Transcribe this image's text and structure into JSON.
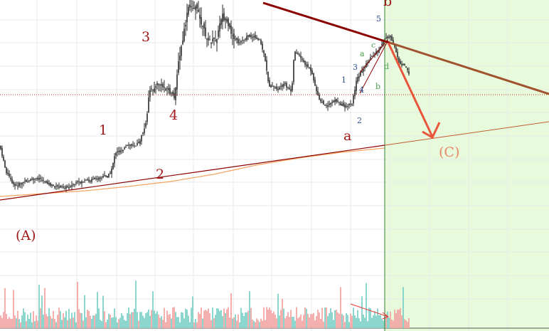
{
  "chart_data": {
    "type": "candlestick",
    "title": "",
    "xlabel": "",
    "ylabel": "",
    "grid": true,
    "colors": {
      "up": "#26a69a",
      "down": "#ef5350",
      "candle": "#2b2b2b",
      "trendline_dark": "#8b0000",
      "trendline_brown": "#a0522d",
      "moving_average": "#f4a460",
      "projection_arrow": "#e8553a",
      "projection_label": "#e8866a",
      "forecast_zone": "#e5f9d9",
      "wave_major": "#a01a1a",
      "wave_minor_blue": "#2a4f8f",
      "wave_minor_green": "#4aa04a",
      "price_line": "#c0392b"
    },
    "wave_labels_major": [
      "(A)",
      "1",
      "2",
      "3",
      "4",
      "a",
      "b",
      "(C)"
    ],
    "wave_labels_blue": [
      "1",
      "2",
      "3",
      "4",
      "5"
    ],
    "wave_labels_green": [
      "a",
      "b",
      "c",
      "d"
    ],
    "annotations": [
      "Projected decline toward (C)",
      "Shaded forecast zone"
    ]
  },
  "labels": {
    "A": "(A)",
    "w1": "1",
    "w2": "2",
    "w3": "3",
    "w4": "4",
    "a": "a",
    "b": "b",
    "C": "(C)",
    "s1": "1",
    "s2": "2",
    "s3": "3",
    "s4": "4",
    "s5": "5",
    "ga": "a",
    "gb": "b",
    "gc": "c",
    "gd": "d"
  }
}
